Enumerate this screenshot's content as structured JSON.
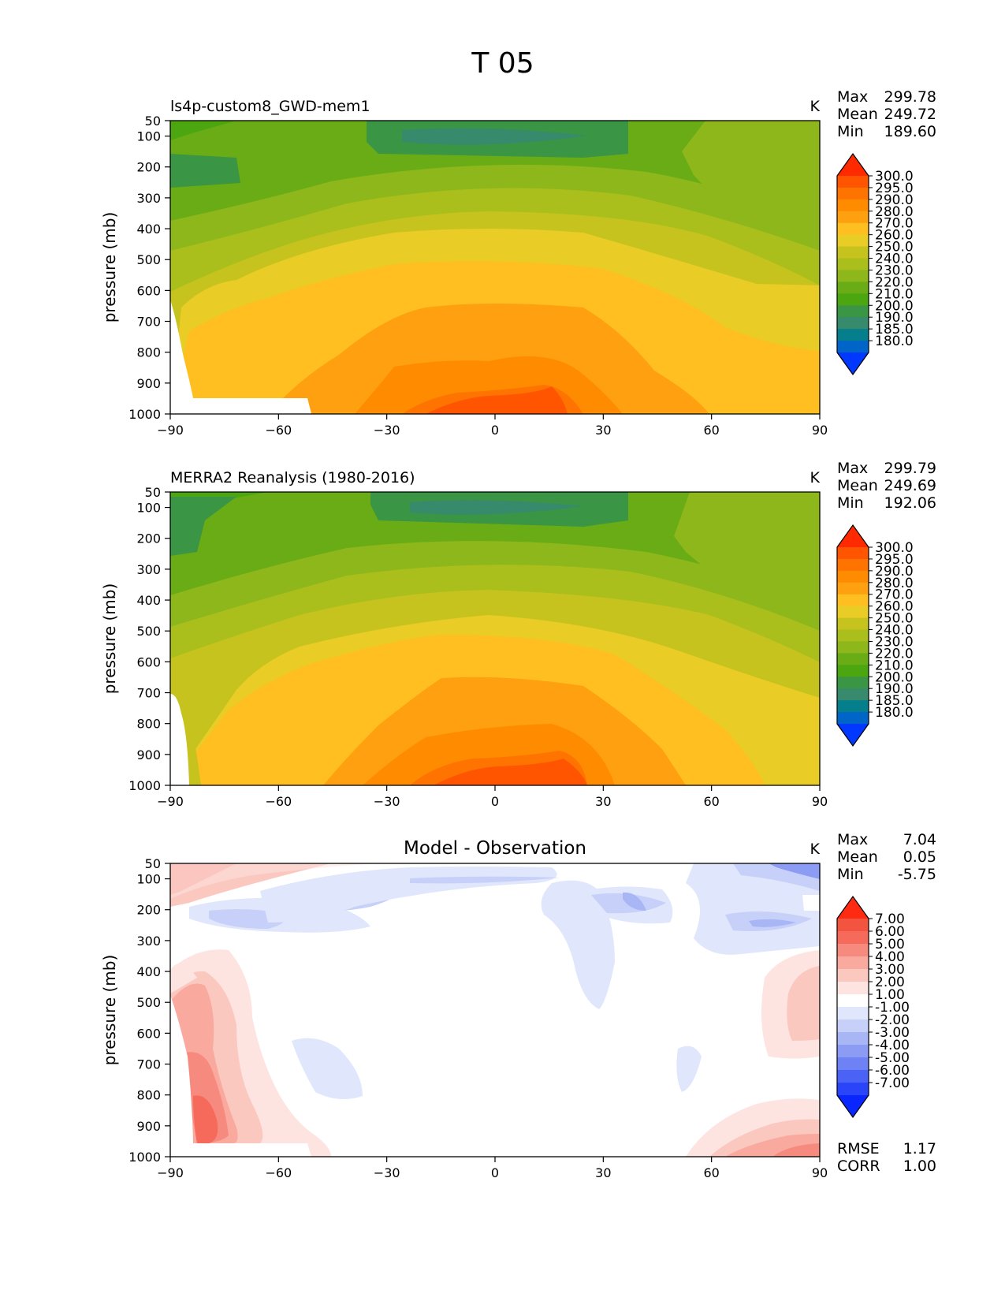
{
  "figure_title": "T 05",
  "chart_data": [
    {
      "type": "contour",
      "title": "ls4p-custom8_GWD-mem1",
      "title_position": "left",
      "units": "K",
      "xlabel": "",
      "ylabel": "pressure (mb)",
      "x_ticks": [
        "−90",
        "−60",
        "−30",
        "0",
        "30",
        "60",
        "90"
      ],
      "x_values": [
        -90,
        -60,
        -30,
        0,
        30,
        60,
        90
      ],
      "y_ticks": [
        "50",
        "100",
        "200",
        "300",
        "400",
        "500",
        "600",
        "700",
        "800",
        "900",
        "1000"
      ],
      "y_values": [
        50,
        100,
        200,
        300,
        400,
        500,
        600,
        700,
        800,
        900,
        1000
      ],
      "xlim": [
        -90,
        90
      ],
      "ylim": [
        1000,
        50
      ],
      "stats": [
        {
          "label": "Max",
          "value": "299.78"
        },
        {
          "label": "Mean",
          "value": "249.72"
        },
        {
          "label": "Min",
          "value": "189.60"
        }
      ],
      "levels": [
        "300.0",
        "295.0",
        "290.0",
        "280.0",
        "270.0",
        "260.0",
        "250.0",
        "240.0",
        "230.0",
        "220.0",
        "210.0",
        "200.0",
        "190.0",
        "185.0",
        "180.0"
      ],
      "colorbar": [
        "#ff2a00",
        "#ff5500",
        "#ff7300",
        "#ff8c00",
        "#ffa010",
        "#ffbf20",
        "#e9cc25",
        "#c6c31e",
        "#aabe1c",
        "#8db71b",
        "#6aac16",
        "#4ca610",
        "#3a9544",
        "#378a6b",
        "#067f8c",
        "#0065c8",
        "#0038ff"
      ]
    },
    {
      "type": "contour",
      "title": "MERRA2 Reanalysis (1980-2016)",
      "title_position": "left",
      "units": "K",
      "xlabel": "",
      "ylabel": "pressure (mb)",
      "x_ticks": [
        "−90",
        "−60",
        "−30",
        "0",
        "30",
        "60",
        "90"
      ],
      "x_values": [
        -90,
        -60,
        -30,
        0,
        30,
        60,
        90
      ],
      "y_ticks": [
        "50",
        "100",
        "200",
        "300",
        "400",
        "500",
        "600",
        "700",
        "800",
        "900",
        "1000"
      ],
      "y_values": [
        50,
        100,
        200,
        300,
        400,
        500,
        600,
        700,
        800,
        900,
        1000
      ],
      "xlim": [
        -90,
        90
      ],
      "ylim": [
        1000,
        50
      ],
      "stats": [
        {
          "label": "Max",
          "value": "299.79"
        },
        {
          "label": "Mean",
          "value": "249.69"
        },
        {
          "label": "Min",
          "value": "192.06"
        }
      ],
      "levels": [
        "300.0",
        "295.0",
        "290.0",
        "280.0",
        "270.0",
        "260.0",
        "250.0",
        "240.0",
        "230.0",
        "220.0",
        "210.0",
        "200.0",
        "190.0",
        "185.0",
        "180.0"
      ],
      "colorbar": [
        "#ff2a00",
        "#ff5500",
        "#ff7300",
        "#ff8c00",
        "#ffa010",
        "#ffbf20",
        "#e9cc25",
        "#c6c31e",
        "#aabe1c",
        "#8db71b",
        "#6aac16",
        "#4ca610",
        "#3a9544",
        "#378a6b",
        "#067f8c",
        "#0065c8",
        "#0038ff"
      ]
    },
    {
      "type": "contour",
      "title": "Model - Observation",
      "title_position": "center",
      "units": "K",
      "xlabel": "",
      "ylabel": "pressure (mb)",
      "x_ticks": [
        "−90",
        "−60",
        "−30",
        "0",
        "30",
        "60",
        "90"
      ],
      "x_values": [
        -90,
        -60,
        -30,
        0,
        30,
        60,
        90
      ],
      "y_ticks": [
        "50",
        "100",
        "200",
        "300",
        "400",
        "500",
        "600",
        "700",
        "800",
        "900",
        "1000"
      ],
      "y_values": [
        50,
        100,
        200,
        300,
        400,
        500,
        600,
        700,
        800,
        900,
        1000
      ],
      "xlim": [
        -90,
        90
      ],
      "ylim": [
        1000,
        50
      ],
      "stats": [
        {
          "label": "Max",
          "value": "7.04"
        },
        {
          "label": "Mean",
          "value": "0.05"
        },
        {
          "label": "Min",
          "value": "-5.75"
        }
      ],
      "levels": [
        "7.00",
        "6.00",
        "5.00",
        "4.00",
        "3.00",
        "2.00",
        "1.00",
        "-1.00",
        "-2.00",
        "-3.00",
        "-4.00",
        "-5.00",
        "-6.00",
        "-7.00"
      ],
      "colorbar": [
        "#ff2a12",
        "#f25440",
        "#f56a5a",
        "#f78a7e",
        "#f9a99e",
        "#fbc8c0",
        "#fde4e0",
        "#ffffff",
        "#e0e6fb",
        "#c6d0f8",
        "#a8b6f6",
        "#8c9cf4",
        "#6e82f5",
        "#4b62f7",
        "#2a44fa",
        "#0a26ff"
      ],
      "extra_stats": [
        {
          "label": "RMSE",
          "value": "1.17"
        },
        {
          "label": "CORR",
          "value": "1.00"
        }
      ]
    }
  ]
}
